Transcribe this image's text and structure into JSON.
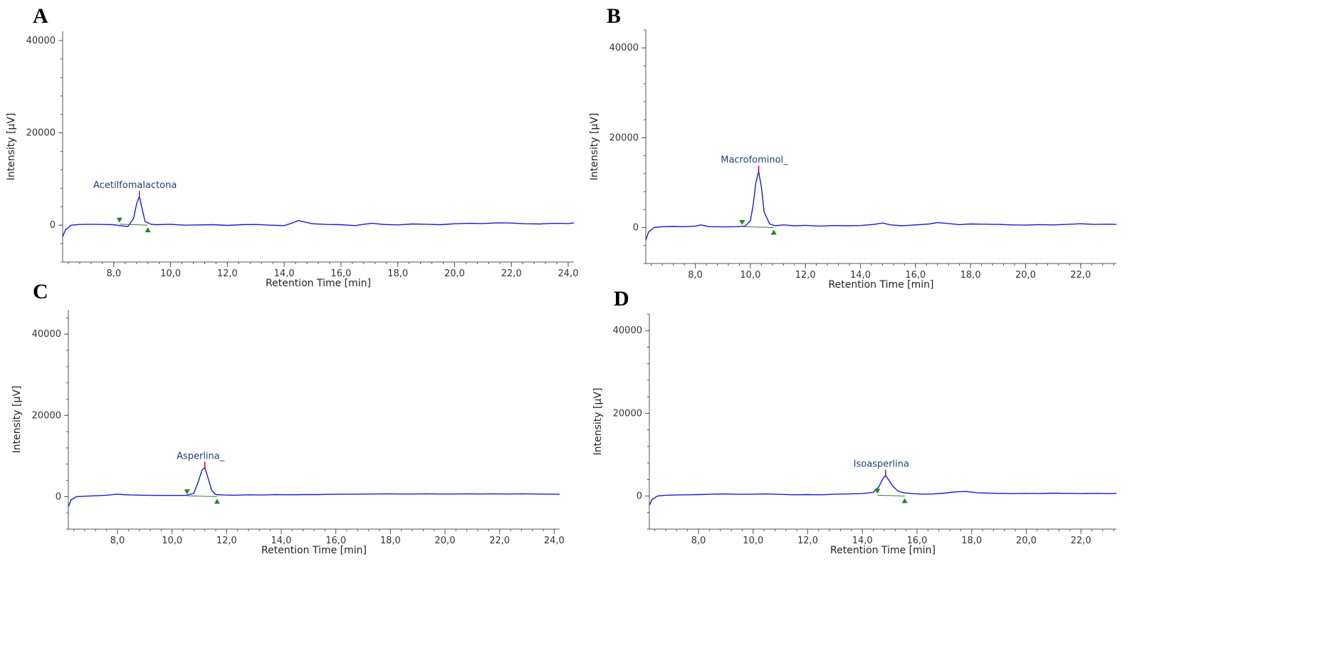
{
  "chart_data": [
    {
      "panel": "A",
      "type": "line",
      "xlabel": "Retention Time [min]",
      "ylabel": "Intensity [µV]",
      "xlim": [
        6.2,
        24.2
      ],
      "ylim": [
        -8000,
        42000
      ],
      "x_ticks": [
        8.0,
        10.0,
        12.0,
        14.0,
        16.0,
        18.0,
        20.0,
        22.0,
        24.0
      ],
      "x_tick_labels": [
        "8,0",
        "10,0",
        "12,0",
        "14,0",
        "16,0",
        "18,0",
        "20,0",
        "22,0",
        "24,0"
      ],
      "y_ticks": [
        0,
        20000,
        40000
      ],
      "y_tick_labels": [
        "0",
        "20000",
        "40000"
      ],
      "series": [
        {
          "color": "#1a1adb",
          "x": [
            6.2,
            6.3,
            6.5,
            6.8,
            7.2,
            7.6,
            8.0,
            8.2,
            8.5,
            8.7,
            8.8,
            8.9,
            9.0,
            9.1,
            9.3,
            9.5,
            10.0,
            10.5,
            11.0,
            11.5,
            12.0,
            12.5,
            13.0,
            13.5,
            14.0,
            14.3,
            14.5,
            14.7,
            15.0,
            15.5,
            16.0,
            16.5,
            16.8,
            17.1,
            17.5,
            18.0,
            18.5,
            19.0,
            19.5,
            20.0,
            20.5,
            21.0,
            21.5,
            22.0,
            22.5,
            23.0,
            23.5,
            24.0,
            24.2
          ],
          "y": [
            -2500,
            -1000,
            0,
            150,
            200,
            150,
            100,
            -100,
            -300,
            1500,
            4500,
            6200,
            3500,
            800,
            200,
            100,
            200,
            0,
            50,
            100,
            -50,
            100,
            150,
            0,
            -100,
            500,
            1000,
            700,
            300,
            150,
            100,
            -100,
            200,
            400,
            150,
            50,
            250,
            200,
            100,
            300,
            400,
            350,
            500,
            450,
            300,
            250,
            400,
            350,
            500
          ]
        }
      ],
      "peaks": [
        {
          "label": "Acetilfomalactona",
          "x": 8.9,
          "y": 6200,
          "start": 8.2,
          "end": 9.2
        }
      ]
    },
    {
      "panel": "B",
      "type": "line",
      "xlabel": "Retention Time [min]",
      "ylabel": "Intensity [µV]",
      "xlim": [
        6.2,
        23.3
      ],
      "ylim": [
        -8000,
        44000
      ],
      "x_ticks": [
        8.0,
        10.0,
        12.0,
        14.0,
        16.0,
        18.0,
        20.0,
        22.0
      ],
      "x_tick_labels": [
        "8,0",
        "10,0",
        "12,0",
        "14,0",
        "16,0",
        "18,0",
        "20,0",
        "22,0"
      ],
      "y_ticks": [
        0,
        20000,
        40000
      ],
      "y_tick_labels": [
        "0",
        "20000",
        "40000"
      ],
      "series": [
        {
          "color": "#1a1adb",
          "x": [
            6.2,
            6.3,
            6.5,
            6.8,
            7.2,
            7.6,
            8.0,
            8.2,
            8.5,
            9.0,
            9.5,
            9.8,
            10.0,
            10.1,
            10.2,
            10.3,
            10.4,
            10.5,
            10.7,
            10.9,
            11.2,
            11.6,
            12.0,
            12.5,
            13.0,
            13.5,
            14.0,
            14.5,
            14.8,
            15.1,
            15.5,
            16.0,
            16.5,
            16.8,
            17.2,
            17.6,
            18.0,
            18.5,
            19.0,
            19.5,
            20.0,
            20.5,
            21.0,
            21.5,
            22.0,
            22.5,
            23.0,
            23.3
          ],
          "y": [
            -2800,
            -1000,
            0,
            200,
            250,
            200,
            300,
            600,
            200,
            150,
            200,
            300,
            1500,
            5000,
            10000,
            12500,
            9000,
            3500,
            800,
            400,
            600,
            400,
            500,
            300,
            450,
            400,
            450,
            700,
            1000,
            600,
            400,
            600,
            800,
            1100,
            900,
            650,
            800,
            750,
            700,
            600,
            550,
            650,
            600,
            700,
            850,
            700,
            750,
            700
          ]
        }
      ],
      "peaks": [
        {
          "label": "Macrofominol_",
          "x": 10.3,
          "y": 12500,
          "start": 9.7,
          "end": 10.85
        }
      ]
    },
    {
      "panel": "C",
      "type": "line",
      "xlabel": "Retention Time [min]",
      "ylabel": "Intensity [µV]",
      "xlim": [
        6.2,
        24.2
      ],
      "ylim": [
        -8000,
        46000
      ],
      "x_ticks": [
        8.0,
        10.0,
        12.0,
        14.0,
        16.0,
        18.0,
        20.0,
        22.0,
        24.0
      ],
      "x_tick_labels": [
        "8,0",
        "10,0",
        "12,0",
        "14,0",
        "16,0",
        "18,0",
        "20,0",
        "22,0",
        "24,0"
      ],
      "y_ticks": [
        0,
        20000,
        40000
      ],
      "y_tick_labels": [
        "0",
        "20000",
        "40000"
      ],
      "series": [
        {
          "color": "#1a1adb",
          "x": [
            6.2,
            6.3,
            6.5,
            6.8,
            7.2,
            7.6,
            8.0,
            8.2,
            8.5,
            9.0,
            9.5,
            10.0,
            10.5,
            10.8,
            10.95,
            11.1,
            11.2,
            11.3,
            11.45,
            11.6,
            11.9,
            12.3,
            12.8,
            13.3,
            13.8,
            14.3,
            14.8,
            15.3,
            15.8,
            16.3,
            16.8,
            17.3,
            17.8,
            18.3,
            18.8,
            19.3,
            19.8,
            20.3,
            20.8,
            21.3,
            21.8,
            22.3,
            22.8,
            23.3,
            23.8,
            24.2
          ],
          "y": [
            -2500,
            -800,
            0,
            100,
            200,
            350,
            600,
            500,
            400,
            350,
            300,
            300,
            300,
            800,
            3500,
            6500,
            7200,
            5000,
            1500,
            500,
            400,
            350,
            450,
            400,
            500,
            450,
            500,
            500,
            550,
            600,
            600,
            650,
            700,
            650,
            650,
            700,
            650,
            650,
            700,
            650,
            700,
            650,
            700,
            650,
            600,
            600
          ]
        }
      ],
      "peaks": [
        {
          "label": "Asperlina_",
          "x": 11.2,
          "y": 7200,
          "start": 10.55,
          "end": 11.65
        }
      ]
    },
    {
      "panel": "D",
      "type": "line",
      "xlabel": "Retention Time [min]",
      "ylabel": "Intensity [µV]",
      "xlim": [
        6.2,
        23.3
      ],
      "ylim": [
        -8000,
        44000
      ],
      "x_ticks": [
        8.0,
        10.0,
        12.0,
        14.0,
        16.0,
        18.0,
        20.0,
        22.0
      ],
      "x_tick_labels": [
        "8,0",
        "10,0",
        "12,0",
        "14,0",
        "16,0",
        "18,0",
        "20,0",
        "22,0"
      ],
      "y_ticks": [
        0,
        20000,
        40000
      ],
      "y_tick_labels": [
        "0",
        "20000",
        "40000"
      ],
      "series": [
        {
          "color": "#1a1adb",
          "x": [
            6.2,
            6.3,
            6.5,
            6.8,
            7.2,
            7.6,
            8.0,
            8.5,
            9.0,
            9.5,
            10.0,
            10.5,
            11.0,
            11.5,
            12.0,
            12.5,
            13.0,
            13.5,
            14.0,
            14.4,
            14.6,
            14.75,
            14.85,
            14.95,
            15.1,
            15.3,
            15.5,
            15.8,
            16.2,
            16.6,
            17.0,
            17.4,
            17.8,
            18.2,
            18.6,
            19.0,
            19.5,
            20.0,
            20.5,
            21.0,
            21.5,
            22.0,
            22.5,
            23.0,
            23.3
          ],
          "y": [
            -2200,
            -800,
            0,
            200,
            250,
            300,
            350,
            450,
            500,
            400,
            450,
            500,
            400,
            300,
            350,
            300,
            450,
            500,
            600,
            900,
            2200,
            4200,
            5000,
            4000,
            2500,
            1200,
            800,
            600,
            450,
            500,
            700,
            1000,
            1100,
            800,
            700,
            650,
            600,
            650,
            600,
            700,
            650,
            600,
            650,
            600,
            650
          ]
        }
      ],
      "peaks": [
        {
          "label": "Isoasperlina",
          "x": 14.85,
          "y": 5000,
          "start": 14.55,
          "end": 15.55
        }
      ]
    }
  ],
  "panels": [
    {
      "letter": "A"
    },
    {
      "letter": "B"
    },
    {
      "letter": "C"
    },
    {
      "letter": "D"
    }
  ]
}
